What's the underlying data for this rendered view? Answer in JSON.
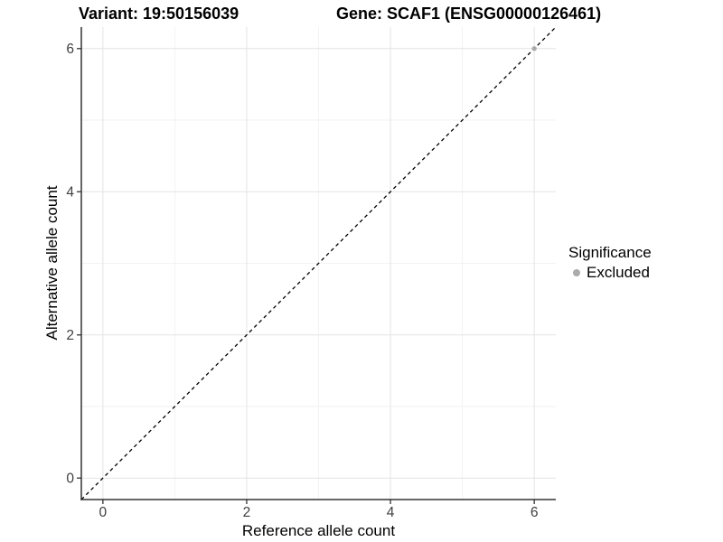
{
  "titles": {
    "variant": "Variant: 19:50156039",
    "gene": "Gene: SCAF1 (ENSG00000126461)"
  },
  "colors": {
    "background": "#ffffff",
    "major_grid": "#e4e4e4",
    "minor_grid": "#f2f2f2",
    "axis_line": "#333333",
    "tick_mark": "#333333",
    "tick_label": "#404040",
    "axis_title": "#000000",
    "reference_line": "#000000",
    "excluded": "#ababab"
  },
  "chart_data": {
    "type": "scatter",
    "x_label": "Reference allele count",
    "y_label": "Alternative allele count",
    "x_range": [
      -0.3,
      6.3
    ],
    "y_range": [
      -0.3,
      6.3
    ],
    "x_ticks": {
      "values": [
        0,
        2,
        4,
        6
      ],
      "labels": [
        "0",
        "2",
        "4",
        "6"
      ]
    },
    "y_ticks": {
      "values": [
        0,
        2,
        4,
        6
      ],
      "labels": [
        "0",
        "2",
        "4",
        "6"
      ]
    },
    "x_minor": [
      1,
      3,
      5
    ],
    "y_minor": [
      1,
      3,
      5
    ],
    "grid": true,
    "legend_position": "right",
    "legend_title": "Significance",
    "reference_line": {
      "slope": 1,
      "intercept": 0,
      "style": "dashed"
    },
    "series": [
      {
        "name": "Excluded",
        "color": "#ababab",
        "points": [
          {
            "x": 6,
            "y": 6
          }
        ]
      }
    ]
  }
}
